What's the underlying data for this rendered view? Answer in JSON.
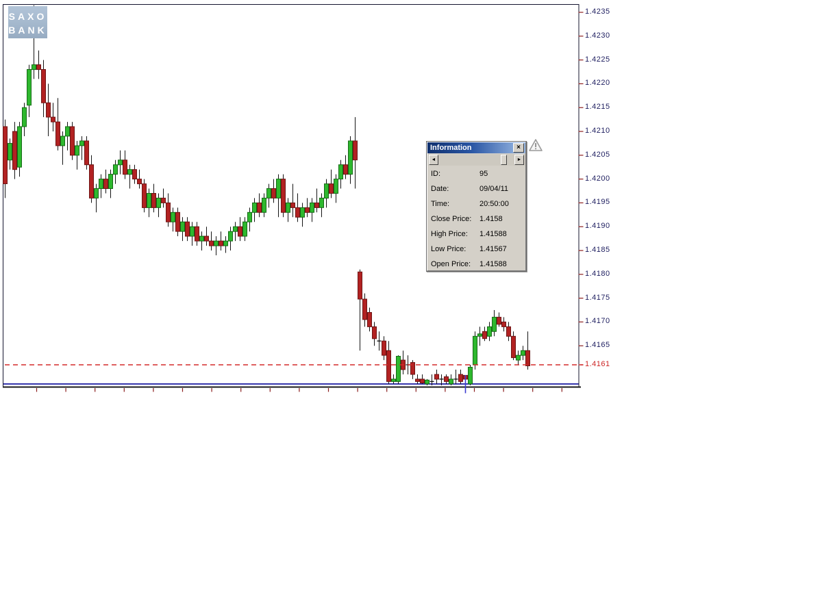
{
  "logo": {
    "line1": "SAXO",
    "line2": "BANK"
  },
  "info_window": {
    "title": "Information",
    "close_glyph": "×",
    "scroll_left_glyph": "◄",
    "scroll_right_glyph": "►",
    "rows": [
      {
        "label": "ID:",
        "value": "95"
      },
      {
        "label": "Date:",
        "value": "09/04/11"
      },
      {
        "label": "Time:",
        "value": "20:50:00"
      },
      {
        "label": "Close Price:",
        "value": "1.4158"
      },
      {
        "label": "High Price:",
        "value": "1.41588"
      },
      {
        "label": "Low Price:",
        "value": "1.41567"
      },
      {
        "label": "Open Price:",
        "value": "1.41588"
      }
    ]
  },
  "colors": {
    "bull_fill": "#2eb82e",
    "bull_border": "#156b15",
    "bear_fill": "#b22222",
    "bear_border": "#6e1414",
    "wick": "#141414",
    "frame": "#14142e",
    "baseline_blue": "#1a1aa0",
    "bottom_line": "#1a1a1a",
    "dashed_line": "#d42a2a",
    "axis_label": "#1c1c5e",
    "axis_tick": "#8b1d1d",
    "red_label": "#cc2222",
    "cursor_blue": "#3c3cd0"
  },
  "chart_data": {
    "type": "candlestick",
    "title": "",
    "y_axis": {
      "tick_prices": [
        1.4235,
        1.423,
        1.4225,
        1.422,
        1.4215,
        1.421,
        1.4205,
        1.42,
        1.4195,
        1.419,
        1.4185,
        1.418,
        1.4175,
        1.417,
        1.4165
      ],
      "red_level": 1.4161,
      "ylim": [
        1.4156,
        1.4237
      ]
    },
    "dashed_level": 1.4161,
    "selected_index": 96,
    "candles": [
      [
        1.4211,
        1.42125,
        1.4196,
        1.4199
      ],
      [
        1.4204,
        1.42085,
        1.4202,
        1.42075
      ],
      [
        1.421,
        1.4212,
        1.42,
        1.4202
      ],
      [
        1.42025,
        1.4212,
        1.42005,
        1.4211
      ],
      [
        1.4211,
        1.4216,
        1.4209,
        1.4215
      ],
      [
        1.42155,
        1.4224,
        1.4213,
        1.4223
      ],
      [
        1.4223,
        1.42365,
        1.4221,
        1.4224
      ],
      [
        1.4224,
        1.4227,
        1.4221,
        1.4223
      ],
      [
        1.4223,
        1.4225,
        1.4213,
        1.4216
      ],
      [
        1.4216,
        1.422,
        1.4209,
        1.4213
      ],
      [
        1.4213,
        1.4216,
        1.421,
        1.4212
      ],
      [
        1.4212,
        1.4217,
        1.4206,
        1.4207
      ],
      [
        1.4207,
        1.421,
        1.4203,
        1.4209
      ],
      [
        1.4209,
        1.4212,
        1.4206,
        1.4211
      ],
      [
        1.4211,
        1.4212,
        1.4204,
        1.4205
      ],
      [
        1.4205,
        1.4208,
        1.4202,
        1.4207
      ],
      [
        1.4207,
        1.4209,
        1.4204,
        1.4208
      ],
      [
        1.4208,
        1.4209,
        1.4202,
        1.4203
      ],
      [
        1.4203,
        1.4205,
        1.4195,
        1.4196
      ],
      [
        1.4196,
        1.4199,
        1.4193,
        1.4198
      ],
      [
        1.4198,
        1.4201,
        1.4196,
        1.42
      ],
      [
        1.42,
        1.4202,
        1.4197,
        1.4198
      ],
      [
        1.4198,
        1.4202,
        1.4196,
        1.4201
      ],
      [
        1.4201,
        1.4204,
        1.4199,
        1.4203
      ],
      [
        1.4203,
        1.4206,
        1.4201,
        1.4204
      ],
      [
        1.4204,
        1.4206,
        1.42,
        1.4201
      ],
      [
        1.4201,
        1.4203,
        1.4198,
        1.4202
      ],
      [
        1.4202,
        1.4203,
        1.4199,
        1.42
      ],
      [
        1.42,
        1.4202,
        1.4198,
        1.4199
      ],
      [
        1.4199,
        1.42,
        1.4193,
        1.4194
      ],
      [
        1.4194,
        1.4198,
        1.4192,
        1.4197
      ],
      [
        1.4197,
        1.4199,
        1.4193,
        1.4194
      ],
      [
        1.4194,
        1.4197,
        1.4192,
        1.4196
      ],
      [
        1.4196,
        1.4198,
        1.4194,
        1.4195
      ],
      [
        1.4195,
        1.4197,
        1.419,
        1.4191
      ],
      [
        1.4191,
        1.4194,
        1.4189,
        1.4193
      ],
      [
        1.4193,
        1.4194,
        1.4188,
        1.4189
      ],
      [
        1.4189,
        1.4192,
        1.4187,
        1.4191
      ],
      [
        1.4191,
        1.4192,
        1.4187,
        1.4188
      ],
      [
        1.4188,
        1.4191,
        1.4186,
        1.419
      ],
      [
        1.419,
        1.4191,
        1.4186,
        1.4187
      ],
      [
        1.4187,
        1.4189,
        1.4185,
        1.4188
      ],
      [
        1.4188,
        1.419,
        1.4186,
        1.4187
      ],
      [
        1.4187,
        1.4189,
        1.4185,
        1.4186
      ],
      [
        1.4186,
        1.4188,
        1.4184,
        1.4187
      ],
      [
        1.4187,
        1.4189,
        1.4185,
        1.4186
      ],
      [
        1.4186,
        1.4188,
        1.41845,
        1.4187
      ],
      [
        1.4187,
        1.419,
        1.4185,
        1.4189
      ],
      [
        1.4189,
        1.4191,
        1.4187,
        1.419
      ],
      [
        1.419,
        1.4192,
        1.4187,
        1.4188
      ],
      [
        1.4188,
        1.4192,
        1.4187,
        1.4191
      ],
      [
        1.4191,
        1.4194,
        1.4189,
        1.4193
      ],
      [
        1.4193,
        1.4196,
        1.4191,
        1.4195
      ],
      [
        1.4195,
        1.4197,
        1.4192,
        1.4193
      ],
      [
        1.4193,
        1.4197,
        1.4192,
        1.4196
      ],
      [
        1.4196,
        1.4199,
        1.4194,
        1.4198
      ],
      [
        1.4198,
        1.42,
        1.4195,
        1.4196
      ],
      [
        1.4196,
        1.4201,
        1.4192,
        1.42
      ],
      [
        1.42,
        1.4201,
        1.4192,
        1.4193
      ],
      [
        1.4193,
        1.4196,
        1.4191,
        1.4195
      ],
      [
        1.4195,
        1.4199,
        1.4192,
        1.4194
      ],
      [
        1.4194,
        1.4197,
        1.4191,
        1.4192
      ],
      [
        1.4192,
        1.4195,
        1.419,
        1.4194
      ],
      [
        1.4194,
        1.4196,
        1.4192,
        1.4193
      ],
      [
        1.4193,
        1.4196,
        1.4191,
        1.4195
      ],
      [
        1.4195,
        1.4198,
        1.4193,
        1.4194
      ],
      [
        1.4194,
        1.4197,
        1.4192,
        1.4196
      ],
      [
        1.4196,
        1.42,
        1.4194,
        1.4199
      ],
      [
        1.4199,
        1.4202,
        1.4196,
        1.4197
      ],
      [
        1.4197,
        1.4201,
        1.4195,
        1.42
      ],
      [
        1.42,
        1.4204,
        1.4198,
        1.4203
      ],
      [
        1.4203,
        1.4205,
        1.42,
        1.4201
      ],
      [
        1.4201,
        1.4209,
        1.4199,
        1.4208
      ],
      [
        1.4208,
        1.4213,
        1.4198,
        1.4204
      ],
      [
        1.41805,
        1.4181,
        1.4164,
        1.41748
      ],
      [
        1.41748,
        1.4176,
        1.4169,
        1.41705
      ],
      [
        1.4172,
        1.4173,
        1.4168,
        1.4169
      ],
      [
        1.4169,
        1.417,
        1.4165,
        1.41665
      ],
      [
        1.4166,
        1.4168,
        1.4164,
        1.4166
      ],
      [
        1.4166,
        1.4167,
        1.4162,
        1.4163
      ],
      [
        1.4164,
        1.4166,
        1.4157,
        1.41575
      ],
      [
        1.41575,
        1.4159,
        1.4157,
        1.4158
      ],
      [
        1.41575,
        1.4163,
        1.4157,
        1.41628
      ],
      [
        1.4162,
        1.4164,
        1.4159,
        1.416
      ],
      [
        1.4161,
        1.4163,
        1.4159,
        1.4161
      ],
      [
        1.41615,
        1.4162,
        1.4158,
        1.4159
      ],
      [
        1.4158,
        1.4159,
        1.4157,
        1.41575
      ],
      [
        1.4158,
        1.4159,
        1.4157,
        1.41572
      ],
      [
        1.4157,
        1.4158,
        1.41565,
        1.41578
      ],
      [
        1.41575,
        1.4159,
        1.41565,
        1.41575
      ],
      [
        1.4159,
        1.416,
        1.4157,
        1.4158
      ],
      [
        1.4158,
        1.4159,
        1.41565,
        1.4158
      ],
      [
        1.41585,
        1.4159,
        1.4157,
        1.41575
      ],
      [
        1.4157,
        1.4159,
        1.41565,
        1.4158
      ],
      [
        1.4158,
        1.416,
        1.4157,
        1.4158
      ],
      [
        1.4159,
        1.416,
        1.4157,
        1.41575
      ],
      [
        1.41588,
        1.41588,
        1.41567,
        1.4158
      ],
      [
        1.4157,
        1.4161,
        1.41565,
        1.41605
      ],
      [
        1.4161,
        1.4168,
        1.416,
        1.4167
      ],
      [
        1.4167,
        1.4169,
        1.4165,
        1.41675
      ],
      [
        1.4168,
        1.4169,
        1.4166,
        1.41665
      ],
      [
        1.4167,
        1.417,
        1.4166,
        1.4169
      ],
      [
        1.4168,
        1.41725,
        1.4167,
        1.4171
      ],
      [
        1.4171,
        1.4172,
        1.4169,
        1.41695
      ],
      [
        1.417,
        1.4171,
        1.4168,
        1.4169
      ],
      [
        1.4169,
        1.417,
        1.4166,
        1.4167
      ],
      [
        1.4167,
        1.4168,
        1.4162,
        1.41625
      ],
      [
        1.4162,
        1.4164,
        1.4161,
        1.4163
      ],
      [
        1.4163,
        1.4165,
        1.4162,
        1.4164
      ],
      [
        1.4164,
        1.4168,
        1.416,
        1.41608
      ]
    ]
  }
}
